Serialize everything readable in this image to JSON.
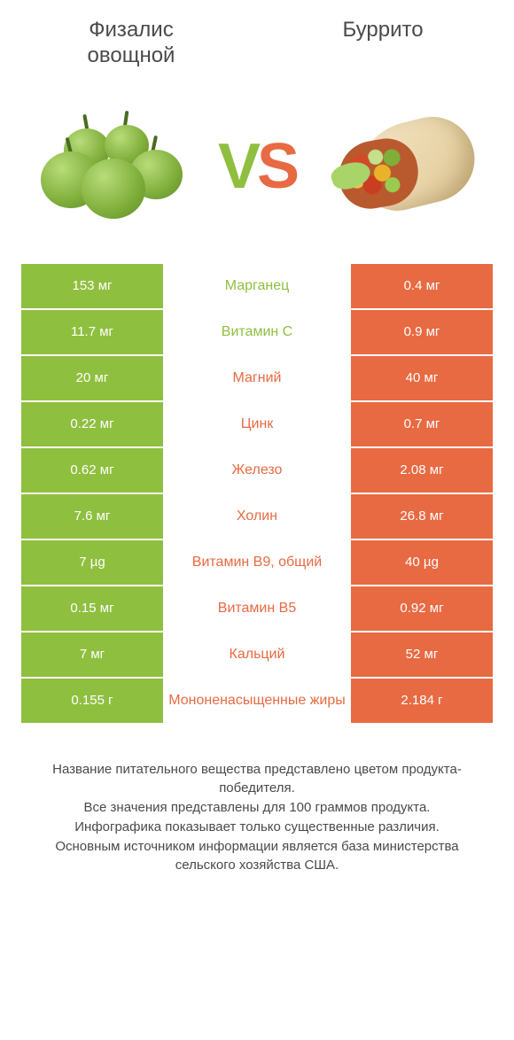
{
  "header": {
    "left_title": "Физалис овощной",
    "right_title": "Буррито"
  },
  "vs": {
    "v": "V",
    "s": "S"
  },
  "colors": {
    "left": "#8fbf3f",
    "right": "#e86a42",
    "text": "#4a4a4a",
    "cell_text": "#ffffff",
    "background": "#ffffff"
  },
  "table": {
    "rows": [
      {
        "left": "153 мг",
        "mid": "Марганец",
        "right": "0.4 мг",
        "winner": "left"
      },
      {
        "left": "11.7 мг",
        "mid": "Витамин C",
        "right": "0.9 мг",
        "winner": "left"
      },
      {
        "left": "20 мг",
        "mid": "Магний",
        "right": "40 мг",
        "winner": "right"
      },
      {
        "left": "0.22 мг",
        "mid": "Цинк",
        "right": "0.7 мг",
        "winner": "right"
      },
      {
        "left": "0.62 мг",
        "mid": "Железо",
        "right": "2.08 мг",
        "winner": "right"
      },
      {
        "left": "7.6 мг",
        "mid": "Холин",
        "right": "26.8 мг",
        "winner": "right"
      },
      {
        "left": "7 µg",
        "mid": "Витамин B9, общий",
        "right": "40 µg",
        "winner": "right"
      },
      {
        "left": "0.15 мг",
        "mid": "Витамин B5",
        "right": "0.92 мг",
        "winner": "right"
      },
      {
        "left": "7 мг",
        "mid": "Кальций",
        "right": "52 мг",
        "winner": "right"
      },
      {
        "left": "0.155 г",
        "mid": "Мононенасыщенные жиры",
        "right": "2.184 г",
        "winner": "right"
      }
    ]
  },
  "footer": {
    "line1": "Название питательного вещества представлено цветом продукта-победителя.",
    "line2": "Все значения представлены для 100 граммов продукта.",
    "line3": "Инфографика показывает только существенные различия.",
    "line4": "Основным источником информации является база министерства сельского хозяйства США."
  },
  "typography": {
    "title_fontsize": 24,
    "vs_fontsize": 72,
    "cell_fontsize": 15,
    "mid_fontsize": 16,
    "footer_fontsize": 15
  }
}
